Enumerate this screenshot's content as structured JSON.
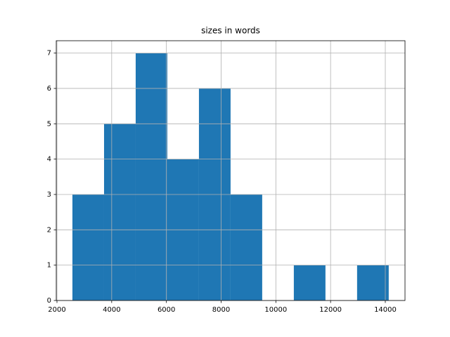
{
  "chart_data": {
    "type": "histogram",
    "title": "sizes in words",
    "bins": [
      2565,
      3721,
      4877,
      6033,
      7189,
      8345,
      9501,
      10657,
      11813,
      12969,
      14125
    ],
    "values": [
      3,
      5,
      7,
      4,
      6,
      3,
      0,
      1,
      0,
      1
    ],
    "color": "#1f77b4",
    "xlim": [
      1974,
      14720
    ],
    "xticks": [
      2000,
      4000,
      6000,
      8000,
      10000,
      12000,
      14000
    ],
    "ylim": [
      0,
      7.35
    ],
    "yticks": [
      0,
      1,
      2,
      3,
      4,
      5,
      6,
      7
    ],
    "grid": true
  }
}
